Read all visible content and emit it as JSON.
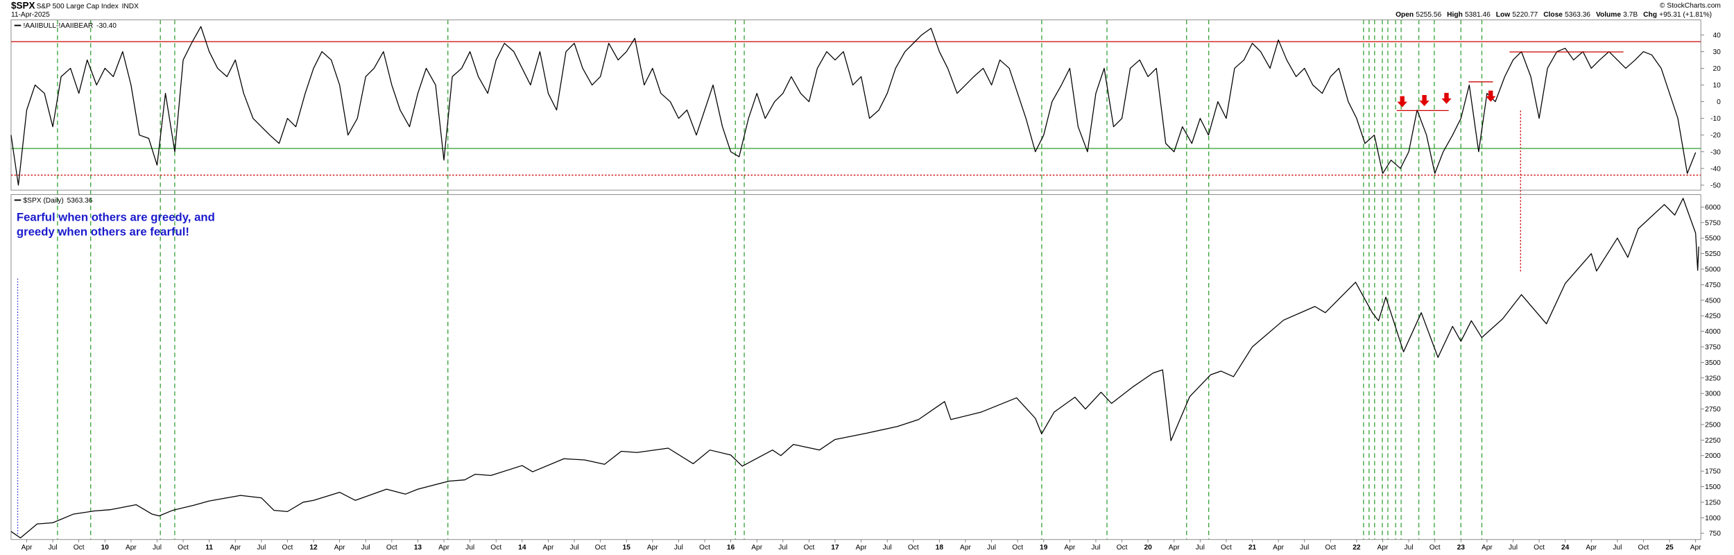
{
  "header": {
    "symbol": "$SPX",
    "name": "S&P 500 Large Cap Index",
    "exchange": "INDX",
    "date": "11-Apr-2025",
    "quote": [
      {
        "label": "Open",
        "value": "5255.56"
      },
      {
        "label": "High",
        "value": "5381.46"
      },
      {
        "label": "Low",
        "value": "5220.77"
      },
      {
        "label": "Close",
        "value": "5363.36"
      },
      {
        "label": "Volume",
        "value": "3.7B"
      },
      {
        "label": "Chg",
        "value": "+95.31 (+1.81%)"
      }
    ],
    "credit": "© StockCharts.com"
  },
  "chart_data": [
    {
      "type": "line",
      "x": [
        2009.1,
        2009.17,
        2009.25,
        2009.33,
        2009.42,
        2009.5,
        2009.58,
        2009.67,
        2009.75,
        2009.83,
        2009.92,
        2010,
        2010.08,
        2010.17,
        2010.25,
        2010.33,
        2010.42,
        2010.5,
        2010.58,
        2010.67,
        2010.75,
        2010.83,
        2010.92,
        2011,
        2011.08,
        2011.17,
        2011.25,
        2011.33,
        2011.42,
        2011.5,
        2011.58,
        2011.67,
        2011.75,
        2011.83,
        2011.92,
        2012,
        2012.08,
        2012.17,
        2012.25,
        2012.33,
        2012.42,
        2012.5,
        2012.58,
        2012.67,
        2012.75,
        2012.83,
        2012.92,
        2013,
        2013.08,
        2013.17,
        2013.25,
        2013.33,
        2013.42,
        2013.5,
        2013.58,
        2013.67,
        2013.75,
        2013.83,
        2013.92,
        2014,
        2014.08,
        2014.17,
        2014.25,
        2014.33,
        2014.42,
        2014.5,
        2014.58,
        2014.67,
        2014.75,
        2014.83,
        2014.92,
        2015,
        2015.08,
        2015.17,
        2015.25,
        2015.33,
        2015.42,
        2015.5,
        2015.58,
        2015.67,
        2015.75,
        2015.83,
        2015.92,
        2016,
        2016.08,
        2016.17,
        2016.25,
        2016.33,
        2016.42,
        2016.5,
        2016.58,
        2016.67,
        2016.75,
        2016.83,
        2016.92,
        2017,
        2017.08,
        2017.17,
        2017.25,
        2017.33,
        2017.42,
        2017.5,
        2017.58,
        2017.67,
        2017.75,
        2017.83,
        2017.92,
        2018,
        2018.08,
        2018.17,
        2018.25,
        2018.33,
        2018.42,
        2018.5,
        2018.58,
        2018.67,
        2018.75,
        2018.83,
        2018.92,
        2019,
        2019.08,
        2019.17,
        2019.25,
        2019.33,
        2019.42,
        2019.5,
        2019.58,
        2019.67,
        2019.75,
        2019.83,
        2019.92,
        2020,
        2020.08,
        2020.17,
        2020.25,
        2020.33,
        2020.42,
        2020.5,
        2020.58,
        2020.67,
        2020.75,
        2020.83,
        2020.92,
        2021,
        2021.08,
        2021.17,
        2021.25,
        2021.33,
        2021.42,
        2021.5,
        2021.58,
        2021.67,
        2021.75,
        2021.83,
        2021.92,
        2022,
        2022.08,
        2022.17,
        2022.25,
        2022.33,
        2022.42,
        2022.5,
        2022.58,
        2022.67,
        2022.75,
        2022.83,
        2022.92,
        2023,
        2023.08,
        2023.17,
        2023.25,
        2023.33,
        2023.42,
        2023.5,
        2023.58,
        2023.67,
        2023.75,
        2023.83,
        2023.92,
        2024,
        2024.08,
        2024.17,
        2024.25,
        2024.33,
        2024.42,
        2024.5,
        2024.58,
        2024.67,
        2024.75,
        2024.83,
        2024.92,
        2025,
        2025.08,
        2025.17,
        2025.25
      ],
      "series": [
        {
          "name": "!AAIIBULL-!AAIIBEAR",
          "last_label": "-30.40",
          "color": "#000000",
          "values": [
            -20,
            -50,
            -5,
            10,
            5,
            -15,
            15,
            20,
            5,
            25,
            10,
            20,
            15,
            30,
            10,
            -20,
            -22,
            -38,
            5,
            -30,
            25,
            35,
            45,
            30,
            20,
            15,
            25,
            5,
            -10,
            -15,
            -20,
            -25,
            -10,
            -15,
            5,
            20,
            30,
            25,
            10,
            -20,
            -10,
            15,
            20,
            30,
            10,
            -5,
            -15,
            5,
            20,
            10,
            -35,
            15,
            20,
            30,
            15,
            5,
            25,
            35,
            30,
            20,
            10,
            30,
            5,
            -5,
            30,
            35,
            20,
            10,
            15,
            35,
            25,
            30,
            38,
            10,
            20,
            5,
            0,
            -10,
            -5,
            -20,
            -5,
            10,
            -15,
            -30,
            -33,
            -10,
            5,
            -10,
            0,
            5,
            15,
            5,
            0,
            20,
            30,
            25,
            30,
            10,
            15,
            -10,
            -5,
            5,
            20,
            30,
            35,
            40,
            44,
            30,
            20,
            5,
            10,
            15,
            20,
            10,
            25,
            20,
            5,
            -10,
            -30,
            -20,
            0,
            10,
            20,
            -15,
            -30,
            5,
            20,
            -15,
            -10,
            20,
            25,
            15,
            20,
            -25,
            -30,
            -15,
            -25,
            -10,
            -20,
            0,
            -10,
            20,
            25,
            35,
            30,
            20,
            37,
            25,
            15,
            20,
            10,
            5,
            15,
            20,
            0,
            -10,
            -25,
            -20,
            -43,
            -35,
            -40,
            -30,
            -5,
            -20,
            -43,
            -30,
            -20,
            -10,
            10,
            -30,
            5,
            0,
            15,
            25,
            30,
            15,
            -10,
            20,
            30,
            32,
            25,
            30,
            20,
            25,
            30,
            25,
            20,
            25,
            30,
            28,
            20,
            5,
            -10,
            -43,
            -30.4
          ]
        }
      ],
      "xlim": [
        2009.1,
        2025.3
      ],
      "ylim": [
        -53,
        49
      ],
      "yticks": [
        40,
        30,
        20,
        10,
        0,
        -10,
        -20,
        -30,
        -40,
        -50
      ],
      "hlines": [
        {
          "value": 36,
          "color": "#cc0000",
          "style": "solid"
        },
        {
          "value": -28,
          "color": "#2e9e2e",
          "style": "solid"
        },
        {
          "value": -44,
          "color": "#cc0000",
          "style": "dotted"
        }
      ]
    },
    {
      "type": "line",
      "annotation": [
        "Fearful when others are greedy, and",
        "greedy when others are fearful!"
      ],
      "x": [
        2009.1,
        2009.19,
        2009.35,
        2009.5,
        2009.7,
        2009.9,
        2010.05,
        2010.3,
        2010.45,
        2010.52,
        2010.65,
        2010.85,
        2011,
        2011.3,
        2011.5,
        2011.62,
        2011.75,
        2011.9,
        2012,
        2012.25,
        2012.4,
        2012.7,
        2012.88,
        2013,
        2013.3,
        2013.45,
        2013.55,
        2013.7,
        2014,
        2014.1,
        2014.4,
        2014.6,
        2014.79,
        2014.95,
        2015.1,
        2015.4,
        2015.64,
        2015.8,
        2016,
        2016.11,
        2016.4,
        2016.48,
        2016.6,
        2016.85,
        2017,
        2017.3,
        2017.6,
        2017.8,
        2018.05,
        2018.11,
        2018.4,
        2018.74,
        2018.92,
        2018.98,
        2019.1,
        2019.3,
        2019.4,
        2019.55,
        2019.65,
        2019.85,
        2020.05,
        2020.14,
        2020.22,
        2020.4,
        2020.6,
        2020.7,
        2020.82,
        2021,
        2021.3,
        2021.6,
        2021.7,
        2021.99,
        2022.15,
        2022.21,
        2022.28,
        2022.45,
        2022.62,
        2022.78,
        2022.92,
        2023,
        2023.1,
        2023.2,
        2023.4,
        2023.58,
        2023.82,
        2024,
        2024.25,
        2024.3,
        2024.5,
        2024.6,
        2024.7,
        2024.95,
        2025.05,
        2025.13,
        2025.25,
        2025.27,
        2025.28
      ],
      "series": [
        {
          "name": "$SPX (Daily)",
          "last_label": "5363.36",
          "color": "#000000",
          "values": [
            780,
            676,
            900,
            920,
            1060,
            1110,
            1130,
            1210,
            1060,
            1030,
            1120,
            1200,
            1270,
            1360,
            1320,
            1120,
            1100,
            1250,
            1280,
            1410,
            1280,
            1460,
            1380,
            1460,
            1590,
            1610,
            1700,
            1680,
            1840,
            1740,
            1950,
            1930,
            1860,
            2070,
            2050,
            2120,
            1870,
            2090,
            2010,
            1830,
            2090,
            2000,
            2180,
            2090,
            2260,
            2360,
            2470,
            2580,
            2870,
            2580,
            2700,
            2930,
            2600,
            2350,
            2700,
            2940,
            2750,
            3020,
            2840,
            3100,
            3330,
            3380,
            2240,
            2950,
            3300,
            3360,
            3270,
            3750,
            4180,
            4400,
            4300,
            4790,
            4300,
            4170,
            4550,
            3670,
            4300,
            3580,
            4080,
            3840,
            4170,
            3900,
            4200,
            4590,
            4120,
            4770,
            5250,
            4970,
            5500,
            5190,
            5650,
            6040,
            5870,
            6140,
            5580,
            4980,
            5363.36
          ]
        }
      ],
      "xlim": [
        2009.1,
        2025.3
      ],
      "ylim": [
        650,
        6200
      ],
      "yticks": [
        6000,
        5750,
        5500,
        5250,
        5000,
        4750,
        4500,
        4250,
        4000,
        3750,
        3500,
        3250,
        3000,
        2750,
        2500,
        2250,
        2000,
        1750,
        1500,
        1250,
        1000,
        750
      ],
      "xticks": [
        {
          "value": 2009.25,
          "label": "Apr"
        },
        {
          "value": 2009.5,
          "label": "Jul"
        },
        {
          "value": 2009.75,
          "label": "Oct"
        },
        {
          "value": 2010,
          "label": "10"
        },
        {
          "value": 2010.25,
          "label": "Apr"
        },
        {
          "value": 2010.5,
          "label": "Jul"
        },
        {
          "value": 2010.75,
          "label": "Oct"
        },
        {
          "value": 2011,
          "label": "11"
        },
        {
          "value": 2011.25,
          "label": "Apr"
        },
        {
          "value": 2011.5,
          "label": "Jul"
        },
        {
          "value": 2011.75,
          "label": "Oct"
        },
        {
          "value": 2012,
          "label": "12"
        },
        {
          "value": 2012.25,
          "label": "Apr"
        },
        {
          "value": 2012.5,
          "label": "Jul"
        },
        {
          "value": 2012.75,
          "label": "Oct"
        },
        {
          "value": 2013,
          "label": "13"
        },
        {
          "value": 2013.25,
          "label": "Apr"
        },
        {
          "value": 2013.5,
          "label": "Jul"
        },
        {
          "value": 2013.75,
          "label": "Oct"
        },
        {
          "value": 2014,
          "label": "14"
        },
        {
          "value": 2014.25,
          "label": "Apr"
        },
        {
          "value": 2014.5,
          "label": "Jul"
        },
        {
          "value": 2014.75,
          "label": "Oct"
        },
        {
          "value": 2015,
          "label": "15"
        },
        {
          "value": 2015.25,
          "label": "Apr"
        },
        {
          "value": 2015.5,
          "label": "Jul"
        },
        {
          "value": 2015.75,
          "label": "Oct"
        },
        {
          "value": 2016,
          "label": "16"
        },
        {
          "value": 2016.25,
          "label": "Apr"
        },
        {
          "value": 2016.5,
          "label": "Jul"
        },
        {
          "value": 2016.75,
          "label": "Oct"
        },
        {
          "value": 2017,
          "label": "17"
        },
        {
          "value": 2017.25,
          "label": "Apr"
        },
        {
          "value": 2017.5,
          "label": "Jul"
        },
        {
          "value": 2017.75,
          "label": "Oct"
        },
        {
          "value": 2018,
          "label": "18"
        },
        {
          "value": 2018.25,
          "label": "Apr"
        },
        {
          "value": 2018.5,
          "label": "Jul"
        },
        {
          "value": 2018.75,
          "label": "Oct"
        },
        {
          "value": 2019,
          "label": "19"
        },
        {
          "value": 2019.25,
          "label": "Apr"
        },
        {
          "value": 2019.5,
          "label": "Jul"
        },
        {
          "value": 2019.75,
          "label": "Oct"
        },
        {
          "value": 2020,
          "label": "20"
        },
        {
          "value": 2020.25,
          "label": "Apr"
        },
        {
          "value": 2020.5,
          "label": "Jul"
        },
        {
          "value": 2020.75,
          "label": "Oct"
        },
        {
          "value": 2021,
          "label": "21"
        },
        {
          "value": 2021.25,
          "label": "Apr"
        },
        {
          "value": 2021.5,
          "label": "Jul"
        },
        {
          "value": 2021.75,
          "label": "Oct"
        },
        {
          "value": 2022,
          "label": "22"
        },
        {
          "value": 2022.25,
          "label": "Apr"
        },
        {
          "value": 2022.5,
          "label": "Jul"
        },
        {
          "value": 2022.75,
          "label": "Oct"
        },
        {
          "value": 2023,
          "label": "23"
        },
        {
          "value": 2023.25,
          "label": "Apr"
        },
        {
          "value": 2023.5,
          "label": "Jul"
        },
        {
          "value": 2023.75,
          "label": "Oct"
        },
        {
          "value": 2024,
          "label": "24"
        },
        {
          "value": 2024.25,
          "label": "Apr"
        },
        {
          "value": 2024.5,
          "label": "Jul"
        },
        {
          "value": 2024.75,
          "label": "Oct"
        },
        {
          "value": 2025,
          "label": "25"
        },
        {
          "value": 2025.25,
          "label": "Apr"
        }
      ]
    }
  ]
}
